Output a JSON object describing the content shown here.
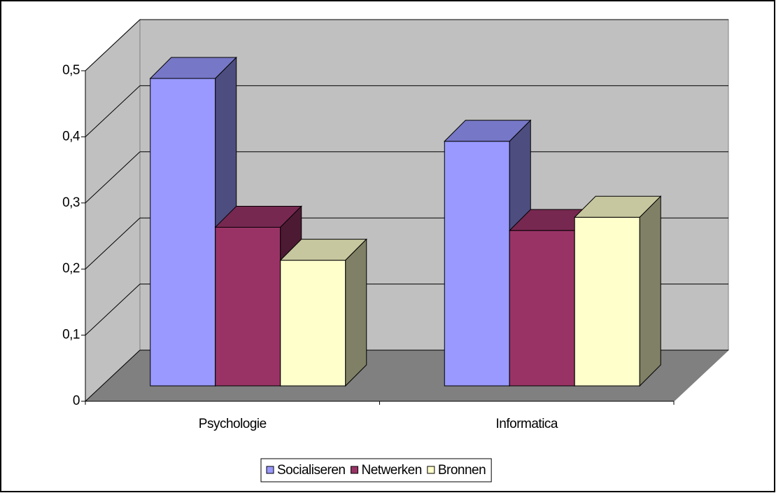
{
  "chart_data": {
    "type": "bar3d",
    "categories": [
      "Psychologie",
      "Informatica"
    ],
    "series": [
      {
        "name": "Socialiseren",
        "color": "#9999ff",
        "values": [
          0.465,
          0.37
        ]
      },
      {
        "name": "Netwerken",
        "color": "#993366",
        "values": [
          0.24,
          0.235
        ]
      },
      {
        "name": "Bronnen",
        "color": "#ffffcc",
        "values": [
          0.19,
          0.255
        ]
      }
    ],
    "ylim": [
      0,
      0.5
    ],
    "yticks": [
      0,
      {
        "value": 0.1,
        "label": "0,1"
      },
      {
        "value": 0.2,
        "label": "0,2"
      },
      {
        "value": 0.3,
        "label": "0,3"
      },
      {
        "value": 0.4,
        "label": "0,4"
      },
      {
        "value": 0.5,
        "label": "0,5"
      }
    ],
    "grid": true,
    "legend": "bottom"
  }
}
